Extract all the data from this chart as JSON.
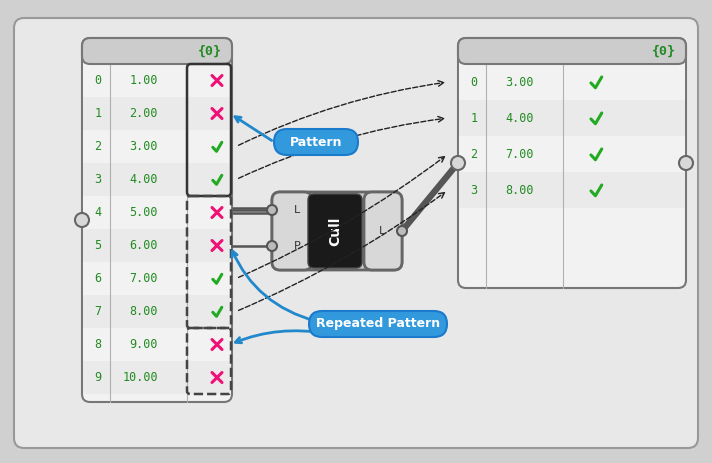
{
  "bg_color": "#d0d0d0",
  "panel_bg": "#f2f2f2",
  "panel_bg_alt": "#e8e8e8",
  "header_bg": "#cccccc",
  "border_color": "#888888",
  "text_color_green": "#228B22",
  "text_color_pink": "#EE1177",
  "left_rows": [
    {
      "idx": 0,
      "val": "1.00",
      "check": false
    },
    {
      "idx": 1,
      "val": "2.00",
      "check": false
    },
    {
      "idx": 2,
      "val": "3.00",
      "check": true
    },
    {
      "idx": 3,
      "val": "4.00",
      "check": true
    },
    {
      "idx": 4,
      "val": "5.00",
      "check": false
    },
    {
      "idx": 5,
      "val": "6.00",
      "check": false
    },
    {
      "idx": 6,
      "val": "7.00",
      "check": true
    },
    {
      "idx": 7,
      "val": "8.00",
      "check": true
    },
    {
      "idx": 8,
      "val": "9.00",
      "check": false
    },
    {
      "idx": 9,
      "val": "10.00",
      "check": false
    }
  ],
  "right_rows": [
    {
      "idx": 0,
      "val": "3.00",
      "check": true
    },
    {
      "idx": 1,
      "val": "4.00",
      "check": true
    },
    {
      "idx": 2,
      "val": "7.00",
      "check": true
    },
    {
      "idx": 3,
      "val": "8.00",
      "check": true
    }
  ],
  "pattern_label": "Pattern",
  "repeated_label": "Repeated Pattern",
  "header_label": "{0}"
}
